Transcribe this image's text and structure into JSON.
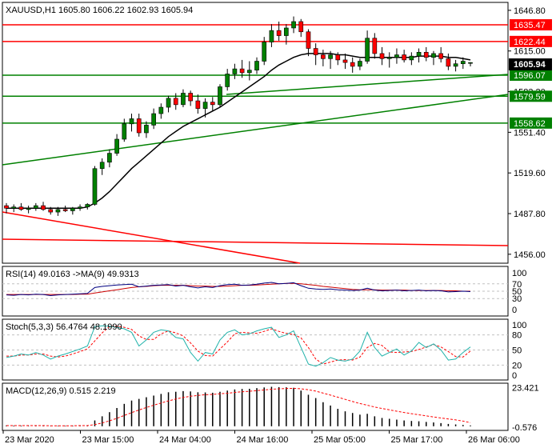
{
  "chart_data": {
    "type": "candlestick",
    "title": "XAUUSD,H1  1605.80 1606.22 1602.93 1605.94",
    "current_price": "1605.94",
    "x_labels": [
      "23 Mar 2020",
      "23 Mar 15:00",
      "24 Mar 04:00",
      "24 Mar 16:00",
      "25 Mar 05:00",
      "25 Mar 17:00",
      "26 Mar 06:00"
    ],
    "price_ticks": [
      "1646.80",
      "1615.00",
      "1583.20",
      "1551.40",
      "1519.60",
      "1487.80",
      "1456.00"
    ],
    "price_range": [
      1449,
      1653
    ],
    "horizontal_levels": [
      {
        "label": "1635.47",
        "value": 1635.47,
        "color": "#ff0000"
      },
      {
        "label": "1622.44",
        "value": 1622.44,
        "color": "#ff0000"
      },
      {
        "label": "1596.07",
        "value": 1596.07,
        "color": "#008000"
      },
      {
        "label": "1579.59",
        "value": 1579.59,
        "color": "#008000"
      },
      {
        "label": "1558.62",
        "value": 1558.62,
        "color": "#008000"
      }
    ],
    "candles": [
      [
        1494,
        1496,
        1488,
        1492
      ],
      [
        1492,
        1495,
        1489,
        1493
      ],
      [
        1493,
        1496,
        1490,
        1491
      ],
      [
        1491,
        1494,
        1488,
        1492
      ],
      [
        1492,
        1496,
        1490,
        1494
      ],
      [
        1494,
        1497,
        1490,
        1491
      ],
      [
        1491,
        1493,
        1487,
        1489
      ],
      [
        1489,
        1493,
        1486,
        1491
      ],
      [
        1491,
        1494,
        1489,
        1490
      ],
      [
        1490,
        1493,
        1487,
        1492
      ],
      [
        1492,
        1495,
        1490,
        1493
      ],
      [
        1493,
        1496,
        1491,
        1495
      ],
      [
        1495,
        1525,
        1494,
        1523
      ],
      [
        1523,
        1531,
        1518,
        1528
      ],
      [
        1528,
        1538,
        1524,
        1535
      ],
      [
        1535,
        1550,
        1533,
        1546
      ],
      [
        1546,
        1562,
        1544,
        1558
      ],
      [
        1558,
        1566,
        1552,
        1562
      ],
      [
        1562,
        1566,
        1548,
        1551
      ],
      [
        1551,
        1560,
        1547,
        1557
      ],
      [
        1557,
        1570,
        1554,
        1566
      ],
      [
        1566,
        1574,
        1562,
        1571
      ],
      [
        1571,
        1580,
        1567,
        1578
      ],
      [
        1578,
        1582,
        1569,
        1573
      ],
      [
        1573,
        1585,
        1571,
        1582
      ],
      [
        1582,
        1584,
        1572,
        1576
      ],
      [
        1576,
        1581,
        1566,
        1570
      ],
      [
        1570,
        1578,
        1563,
        1575
      ],
      [
        1575,
        1579,
        1568,
        1573
      ],
      [
        1573,
        1589,
        1571,
        1587
      ],
      [
        1587,
        1601,
        1584,
        1597
      ],
      [
        1597,
        1605,
        1593,
        1601
      ],
      [
        1601,
        1608,
        1594,
        1598
      ],
      [
        1598,
        1607,
        1592,
        1600
      ],
      [
        1600,
        1610,
        1597,
        1607
      ],
      [
        1607,
        1626,
        1604,
        1622
      ],
      [
        1622,
        1636,
        1618,
        1631
      ],
      [
        1631,
        1638,
        1623,
        1627
      ],
      [
        1627,
        1636,
        1620,
        1633
      ],
      [
        1633,
        1642,
        1629,
        1638
      ],
      [
        1638,
        1640,
        1626,
        1630
      ],
      [
        1630,
        1632,
        1611,
        1617
      ],
      [
        1617,
        1621,
        1604,
        1612
      ],
      [
        1612,
        1616,
        1603,
        1609
      ],
      [
        1609,
        1615,
        1601,
        1612
      ],
      [
        1612,
        1614,
        1604,
        1608
      ],
      [
        1608,
        1613,
        1601,
        1606
      ],
      [
        1606,
        1610,
        1598,
        1603
      ],
      [
        1603,
        1609,
        1600,
        1607
      ],
      [
        1607,
        1631,
        1605,
        1625
      ],
      [
        1625,
        1629,
        1609,
        1613
      ],
      [
        1613,
        1618,
        1604,
        1609
      ],
      [
        1609,
        1614,
        1602,
        1610
      ],
      [
        1610,
        1617,
        1605,
        1612
      ],
      [
        1612,
        1616,
        1606,
        1608
      ],
      [
        1608,
        1614,
        1604,
        1611
      ],
      [
        1611,
        1617,
        1606,
        1614
      ],
      [
        1614,
        1618,
        1607,
        1610
      ],
      [
        1610,
        1615,
        1604,
        1613
      ],
      [
        1613,
        1618,
        1606,
        1609
      ],
      [
        1609,
        1613,
        1600,
        1603
      ],
      [
        1603,
        1608,
        1599,
        1605
      ],
      [
        1605,
        1610,
        1601,
        1607
      ],
      [
        1605.8,
        1606.22,
        1602.93,
        1605.94
      ]
    ],
    "ma_line": [
      1492,
      1492,
      1492,
      1492,
      1492,
      1492,
      1492,
      1492,
      1492,
      1492,
      1492,
      1493,
      1496,
      1500,
      1505,
      1511,
      1517,
      1523,
      1528,
      1533,
      1538,
      1543,
      1548,
      1552,
      1556,
      1559,
      1562,
      1565,
      1568,
      1571,
      1575,
      1579,
      1583,
      1587,
      1591,
      1595,
      1600,
      1604,
      1607,
      1610,
      1612,
      1613,
      1613,
      1613,
      1613,
      1612,
      1612,
      1611,
      1610,
      1610,
      1610,
      1610,
      1610,
      1610,
      1610,
      1610,
      1611,
      1611,
      1611,
      1611,
      1610,
      1610,
      1609,
      1608
    ],
    "indicators": [
      {
        "label": "RSI(14) 49.0163  ->MA(9) 49.9313",
        "levels": [
          "100",
          "70",
          "50",
          "30",
          "0"
        ],
        "range": [
          0,
          100
        ]
      },
      {
        "label": "Stoch(5,3,3) 56.4764 48.1990",
        "levels": [
          "100",
          "80",
          "50",
          "20",
          "0"
        ],
        "range": [
          0,
          100
        ]
      },
      {
        "label": "MACD(12,26,9) 0.515 2.219",
        "levels": [
          "23.421",
          "-0.576"
        ],
        "range": [
          -2.5,
          25
        ]
      }
    ],
    "rsi": [
      40,
      39,
      41,
      40,
      42,
      41,
      38,
      40,
      41,
      42,
      43,
      44,
      60,
      63,
      65,
      67,
      68,
      69,
      62,
      64,
      66,
      67,
      68,
      64,
      66,
      62,
      59,
      62,
      60,
      65,
      68,
      69,
      66,
      67,
      69,
      72,
      74,
      70,
      71,
      73,
      65,
      58,
      56,
      55,
      56,
      54,
      53,
      52,
      53,
      58,
      53,
      51,
      52,
      53,
      51,
      52,
      53,
      51,
      52,
      51,
      48,
      49,
      50,
      49
    ],
    "rsi_ma": [
      41,
      41,
      41,
      41,
      41,
      41,
      41,
      41,
      41,
      41,
      42,
      42,
      45,
      48,
      51,
      54,
      57,
      60,
      62,
      63,
      65,
      66,
      66,
      66,
      66,
      65,
      64,
      64,
      63,
      63,
      64,
      65,
      66,
      66,
      67,
      68,
      69,
      70,
      71,
      71,
      70,
      68,
      66,
      63,
      61,
      59,
      57,
      55,
      54,
      54,
      54,
      53,
      53,
      53,
      53,
      52,
      52,
      52,
      52,
      52,
      51,
      51,
      50,
      50
    ],
    "stoch_k": [
      35,
      38,
      42,
      40,
      45,
      40,
      32,
      38,
      42,
      47,
      52,
      58,
      96,
      98,
      97,
      95,
      92,
      85,
      58,
      70,
      85,
      90,
      88,
      75,
      72,
      45,
      28,
      45,
      42,
      70,
      85,
      90,
      80,
      82,
      88,
      92,
      95,
      75,
      80,
      88,
      55,
      22,
      18,
      25,
      35,
      30,
      28,
      32,
      48,
      85,
      55,
      38,
      45,
      52,
      40,
      48,
      65,
      55,
      62,
      50,
      30,
      32,
      45,
      56
    ],
    "stoch_d": [
      38,
      38,
      40,
      40,
      42,
      42,
      38,
      36,
      38,
      42,
      47,
      52,
      68,
      84,
      97,
      97,
      95,
      91,
      78,
      71,
      71,
      82,
      88,
      84,
      78,
      64,
      48,
      39,
      38,
      52,
      66,
      82,
      85,
      84,
      83,
      87,
      92,
      87,
      83,
      81,
      74,
      55,
      32,
      22,
      26,
      30,
      31,
      30,
      36,
      55,
      63,
      59,
      46,
      45,
      46,
      47,
      51,
      56,
      61,
      56,
      47,
      37,
      36,
      48
    ],
    "macd": [
      0.5,
      0.4,
      0.4,
      0.3,
      0.4,
      0.3,
      0.2,
      0.3,
      0.3,
      0.4,
      0.5,
      0.6,
      3.5,
      6,
      8.5,
      11,
      13.5,
      15.5,
      16.5,
      17.5,
      18.5,
      19.5,
      20.5,
      20.8,
      21.2,
      21,
      20.5,
      20.4,
      20.2,
      20.8,
      21.5,
      22.2,
      22.5,
      22.6,
      23,
      23.4,
      23.8,
      23.6,
      23.5,
      23.2,
      21.5,
      19,
      17,
      14.5,
      12.5,
      10.5,
      9,
      8,
      7,
      7.5,
      6,
      5,
      4.5,
      4,
      3.5,
      3.2,
      3,
      2.6,
      2.3,
      1.9,
      1.4,
      1.1,
      0.8,
      0.5
    ],
    "macd_signal": [
      0.4,
      0.4,
      0.4,
      0.4,
      0.4,
      0.4,
      0.3,
      0.3,
      0.3,
      0.3,
      0.4,
      0.4,
      1,
      2,
      3.3,
      4.8,
      6.5,
      8.2,
      9.8,
      11.3,
      12.7,
      14,
      15.3,
      16.4,
      17.4,
      18.1,
      18.6,
      19,
      19.2,
      19.6,
      19.9,
      20.4,
      20.8,
      21.1,
      21.5,
      21.9,
      22.3,
      22.6,
      22.8,
      22.9,
      22.6,
      22,
      21.2,
      20,
      18.8,
      17.5,
      16.2,
      14.9,
      13.7,
      12.7,
      11.6,
      10.7,
      9.9,
      9.1,
      8.3,
      7.6,
      6.9,
      6.3,
      5.6,
      5,
      4.4,
      3.8,
      3.1,
      2.2
    ]
  }
}
